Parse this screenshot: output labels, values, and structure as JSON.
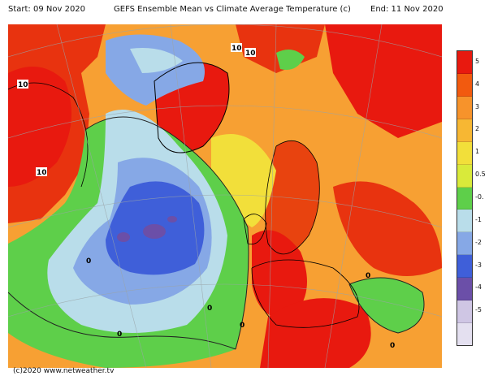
{
  "header": {
    "start": "Start: 09 Nov 2020",
    "title": "GEFS Ensemble Mean vs Climate Average Temperature (c)",
    "end": "End: 11 Nov 2020"
  },
  "credit": "(c)2020 www.netweather.tv",
  "legend": {
    "entries": [
      {
        "label": "5",
        "color": "#e8190f"
      },
      {
        "label": "4",
        "color": "#f25a0f"
      },
      {
        "label": "3",
        "color": "#f7932b"
      },
      {
        "label": "2",
        "color": "#f7b733"
      },
      {
        "label": "1",
        "color": "#f2df3a"
      },
      {
        "label": "0.5",
        "color": "#d9ea3a"
      },
      {
        "label": "-0.",
        "color": "#5ecf4a"
      },
      {
        "label": "-1",
        "color": "#b9ddea"
      },
      {
        "label": "-2",
        "color": "#86a8e6"
      },
      {
        "label": "-3",
        "color": "#3f5fd9"
      },
      {
        "label": "-4",
        "color": "#6b4fa8"
      },
      {
        "label": "-5",
        "color": "#cfc6e4"
      },
      {
        "label": "",
        "color": "#e4e0f0"
      }
    ]
  },
  "map_labels": [
    "10",
    "10",
    "10",
    "10",
    "0",
    "0",
    "0",
    "0",
    "0",
    "0"
  ]
}
